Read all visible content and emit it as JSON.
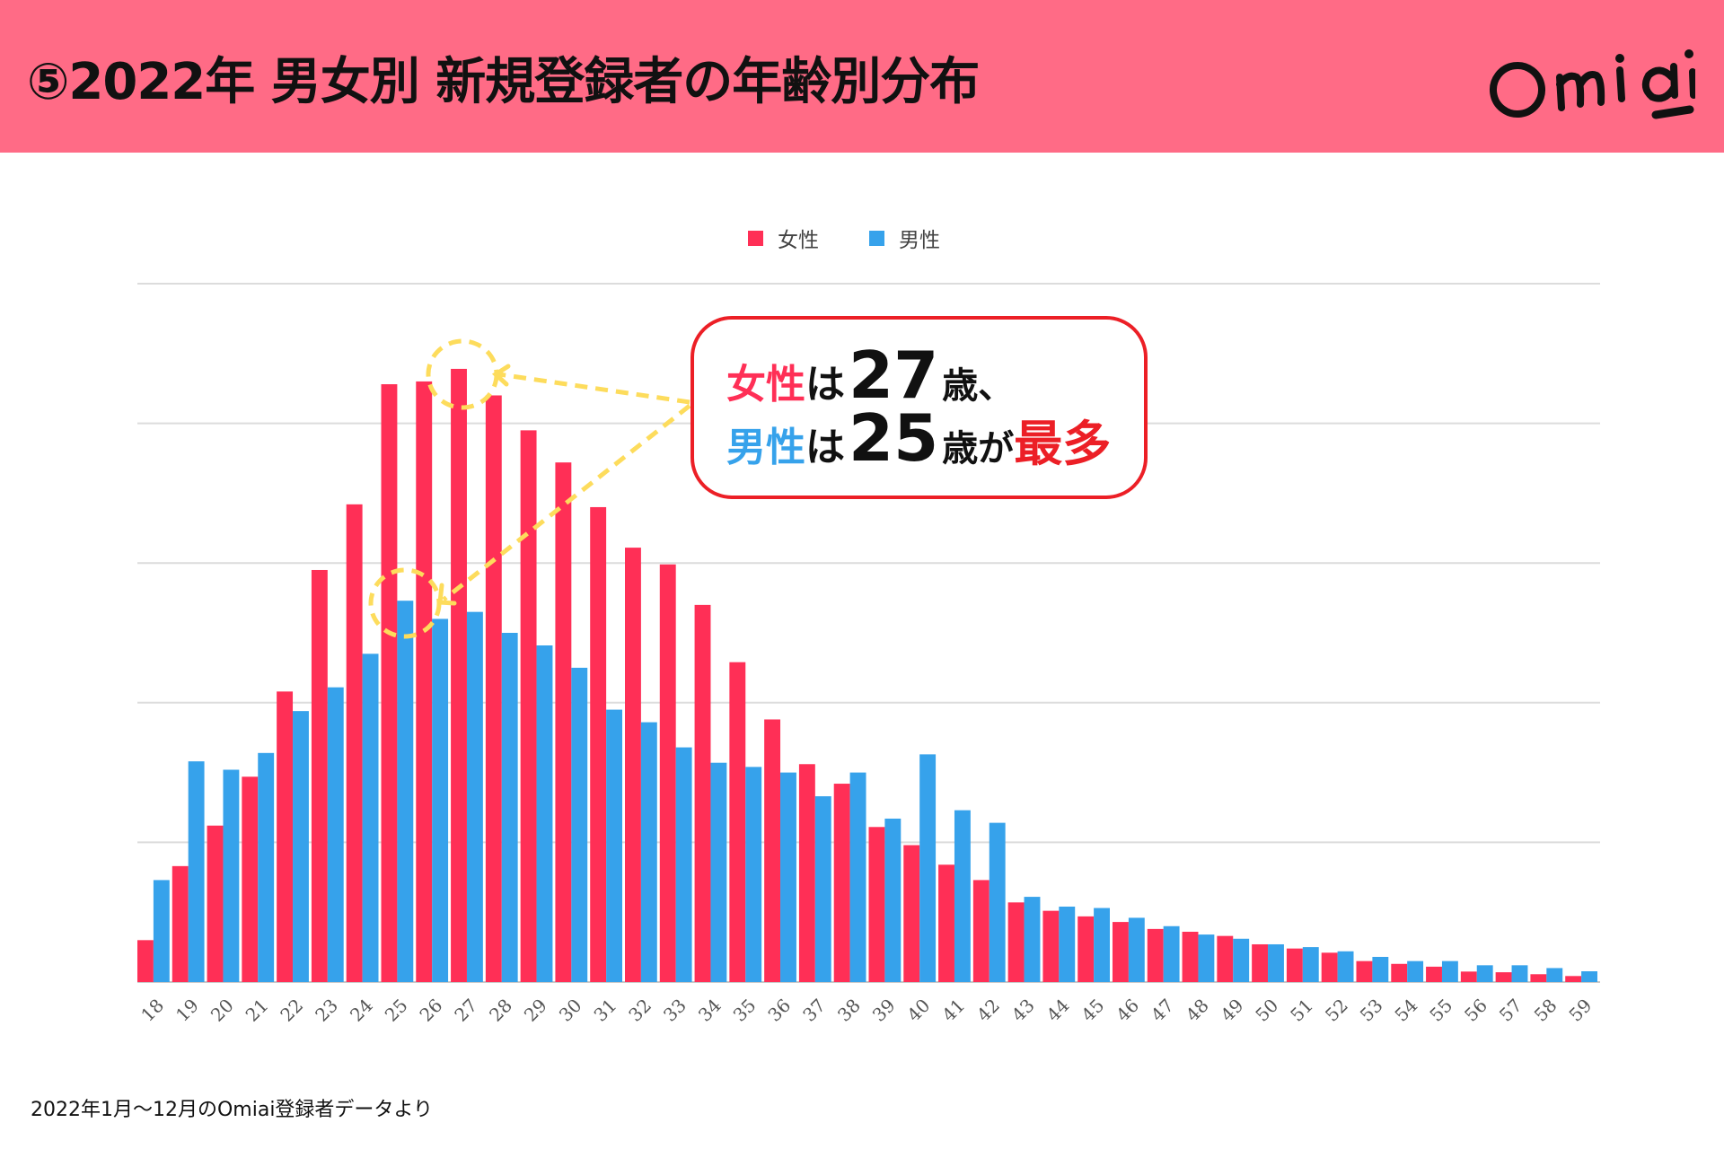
{
  "header": {
    "title": "⑤2022年 男女別 新規登録者の年齢別分布",
    "logo_text": "Omiai",
    "background_color": "#ff6b86"
  },
  "legend": {
    "items": [
      {
        "label": "女性",
        "color": "#ff2f56"
      },
      {
        "label": "男性",
        "color": "#36a2eb"
      }
    ]
  },
  "callout": {
    "line1": {
      "subject": "女性",
      "particle": "は",
      "age": "27",
      "unit": "歳、"
    },
    "line2": {
      "subject": "男性",
      "particle": "は",
      "age": "25",
      "unit": "歳が",
      "emphasis": "最多"
    },
    "border_color": "#ec1f26",
    "female_color": "#ff2f56",
    "male_color": "#36a2eb",
    "emphasis_color": "#ec1f26",
    "annotation_color": "#fddc5c"
  },
  "footer": {
    "note": "2022年1月〜12月のOmiai登録者データより"
  },
  "chart_data": {
    "type": "bar",
    "title": "2022年 男女別 新規登録者の年齢別分布",
    "xlabel": "",
    "ylabel": "",
    "ylim": [
      0,
      5
    ],
    "yticks_note": "y-axis tick labels are clipped/unreadable; values expressed in gridline units (5 intervals)",
    "grid": true,
    "legend_position": "top",
    "categories": [
      "18",
      "19",
      "20",
      "21",
      "22",
      "23",
      "24",
      "25",
      "26",
      "27",
      "28",
      "29",
      "30",
      "31",
      "32",
      "33",
      "34",
      "35",
      "36",
      "37",
      "38",
      "39",
      "40",
      "41",
      "42",
      "43",
      "44",
      "45",
      "46",
      "47",
      "48",
      "49",
      "50",
      "51",
      "52",
      "53",
      "54",
      "55",
      "56",
      "57",
      "58",
      "59"
    ],
    "series": [
      {
        "name": "女性",
        "color": "#ff2f56",
        "values": [
          0.3,
          0.83,
          1.12,
          1.47,
          2.08,
          2.95,
          3.42,
          4.28,
          4.3,
          4.39,
          4.2,
          3.95,
          3.72,
          3.4,
          3.11,
          2.99,
          2.7,
          2.29,
          1.88,
          1.56,
          1.42,
          1.11,
          0.98,
          0.84,
          0.73,
          0.57,
          0.51,
          0.47,
          0.43,
          0.38,
          0.36,
          0.33,
          0.27,
          0.24,
          0.21,
          0.15,
          0.13,
          0.11,
          0.075,
          0.07,
          0.056,
          0.043
        ]
      },
      {
        "name": "男性",
        "color": "#36a2eb",
        "values": [
          0.73,
          1.58,
          1.52,
          1.64,
          1.94,
          2.11,
          2.35,
          2.73,
          2.6,
          2.65,
          2.5,
          2.41,
          2.25,
          1.95,
          1.86,
          1.68,
          1.57,
          1.54,
          1.5,
          1.33,
          1.5,
          1.17,
          1.63,
          1.23,
          1.14,
          0.61,
          0.54,
          0.53,
          0.46,
          0.4,
          0.34,
          0.31,
          0.27,
          0.25,
          0.22,
          0.18,
          0.15,
          0.15,
          0.12,
          0.12,
          0.1,
          0.077
        ]
      }
    ],
    "annotations": [
      {
        "text": "女性は27歳、男性は25歳が最多",
        "highlight": [
          {
            "series": "女性",
            "category": "27"
          },
          {
            "series": "男性",
            "category": "25"
          }
        ]
      }
    ]
  }
}
